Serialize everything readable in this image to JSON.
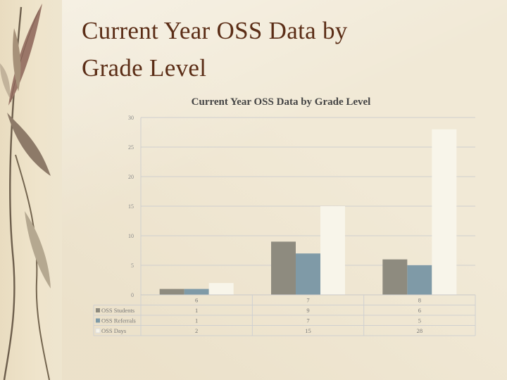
{
  "slide": {
    "title_line1": "Current Year OSS Data by",
    "title_line2": "Grade Level"
  },
  "colors": {
    "students": "#8e8b7f",
    "referrals": "#7f9aa7",
    "days": "#f8f5ea",
    "title": "#5b2d16"
  },
  "chart_data": {
    "type": "bar",
    "title": "Current Year OSS Data by Grade Level",
    "categories": [
      "6",
      "7",
      "8"
    ],
    "series": [
      {
        "name": "OSS Students",
        "values": [
          1,
          9,
          6
        ]
      },
      {
        "name": "OSS Referrals",
        "values": [
          1,
          7,
          5
        ]
      },
      {
        "name": "OSS Days",
        "values": [
          2,
          15,
          28
        ]
      }
    ],
    "yticks": [
      "0",
      "5",
      "10",
      "15",
      "20",
      "25",
      "30"
    ],
    "ylim": [
      0,
      30
    ],
    "grid": true,
    "legend": "data-table-below"
  }
}
